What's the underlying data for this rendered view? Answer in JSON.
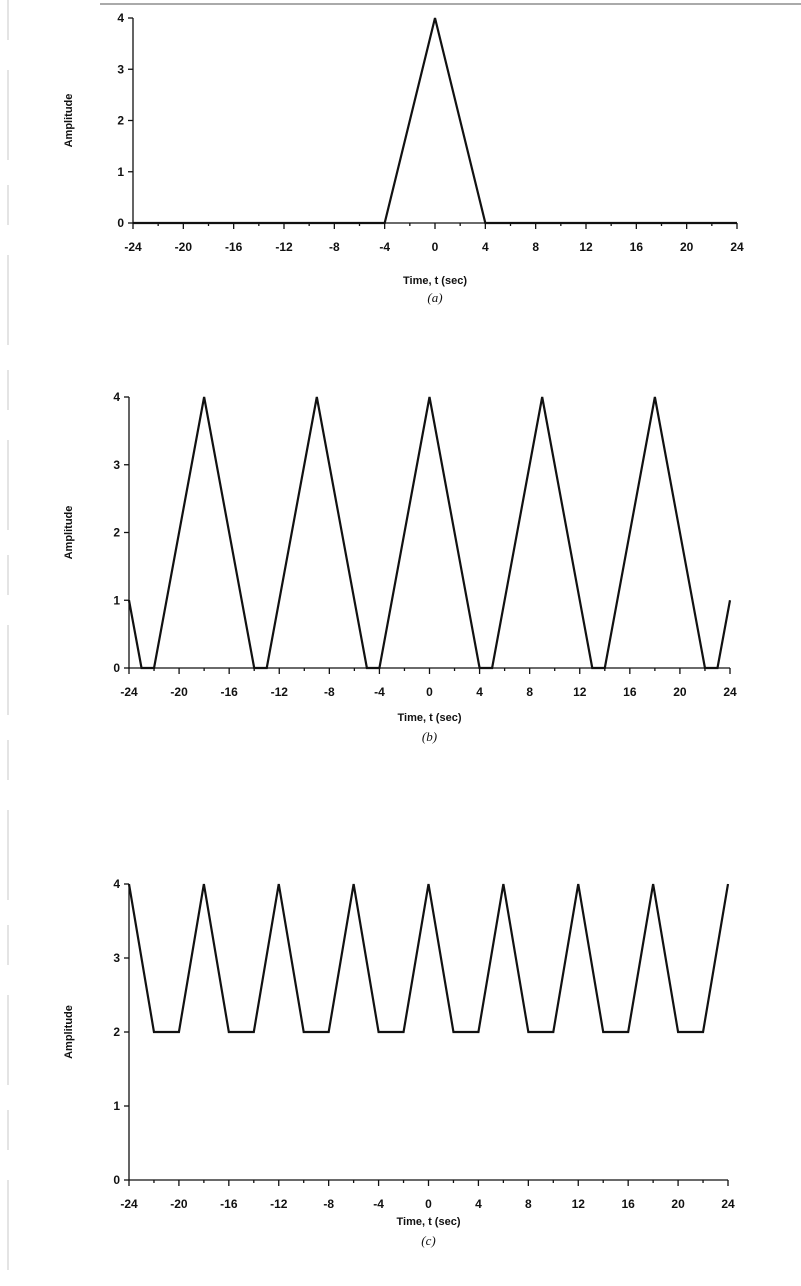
{
  "chart_data": [
    {
      "type": "line",
      "caption": "(a)",
      "xlabel": "Time, t (sec)",
      "ylabel": "Amplitude",
      "xlim": [
        -24,
        24
      ],
      "ylim": [
        0,
        4
      ],
      "xticks": [
        -24,
        -20,
        -16,
        -12,
        -8,
        -4,
        0,
        4,
        8,
        12,
        16,
        20,
        24
      ],
      "yticks": [
        0,
        1,
        2,
        3,
        4
      ],
      "x": [
        -24,
        -4,
        0,
        4,
        24
      ],
      "y": [
        0,
        0,
        4,
        0,
        0
      ]
    },
    {
      "type": "line",
      "caption": "(b)",
      "xlabel": "Time, t (sec)",
      "ylabel": "Amplitude",
      "xlim": [
        -24,
        24
      ],
      "ylim": [
        0,
        4
      ],
      "xticks": [
        -24,
        -20,
        -16,
        -12,
        -8,
        -4,
        0,
        4,
        8,
        12,
        16,
        20,
        24
      ],
      "yticks": [
        0,
        1,
        2,
        3,
        4
      ],
      "x": [
        -24,
        -23,
        -22,
        -18,
        -14,
        -13,
        -9,
        -5,
        -4,
        0,
        4,
        5,
        9,
        13,
        14,
        18,
        22,
        23,
        24
      ],
      "y": [
        1,
        0,
        0,
        4,
        0,
        0,
        4,
        0,
        0,
        4,
        0,
        0,
        4,
        0,
        0,
        4,
        0,
        0,
        1
      ]
    },
    {
      "type": "line",
      "caption": "(c)",
      "xlabel": "Time, t (sec)",
      "ylabel": "Amplitude",
      "xlim": [
        -24,
        24
      ],
      "ylim": [
        0,
        4
      ],
      "xticks": [
        -24,
        -20,
        -16,
        -12,
        -8,
        -4,
        0,
        4,
        8,
        12,
        16,
        20,
        24
      ],
      "yticks": [
        0,
        1,
        2,
        3,
        4
      ],
      "x": [
        -24,
        -22,
        -20,
        -18,
        -16,
        -14,
        -12,
        -10,
        -8,
        -6,
        -4,
        -2,
        0,
        2,
        4,
        6,
        8,
        10,
        12,
        14,
        16,
        18,
        20,
        22,
        24
      ],
      "y": [
        4,
        2,
        2,
        4,
        2,
        2,
        4,
        2,
        2,
        4,
        2,
        2,
        4,
        2,
        2,
        4,
        2,
        2,
        4,
        2,
        2,
        4,
        2,
        2,
        4
      ]
    }
  ]
}
